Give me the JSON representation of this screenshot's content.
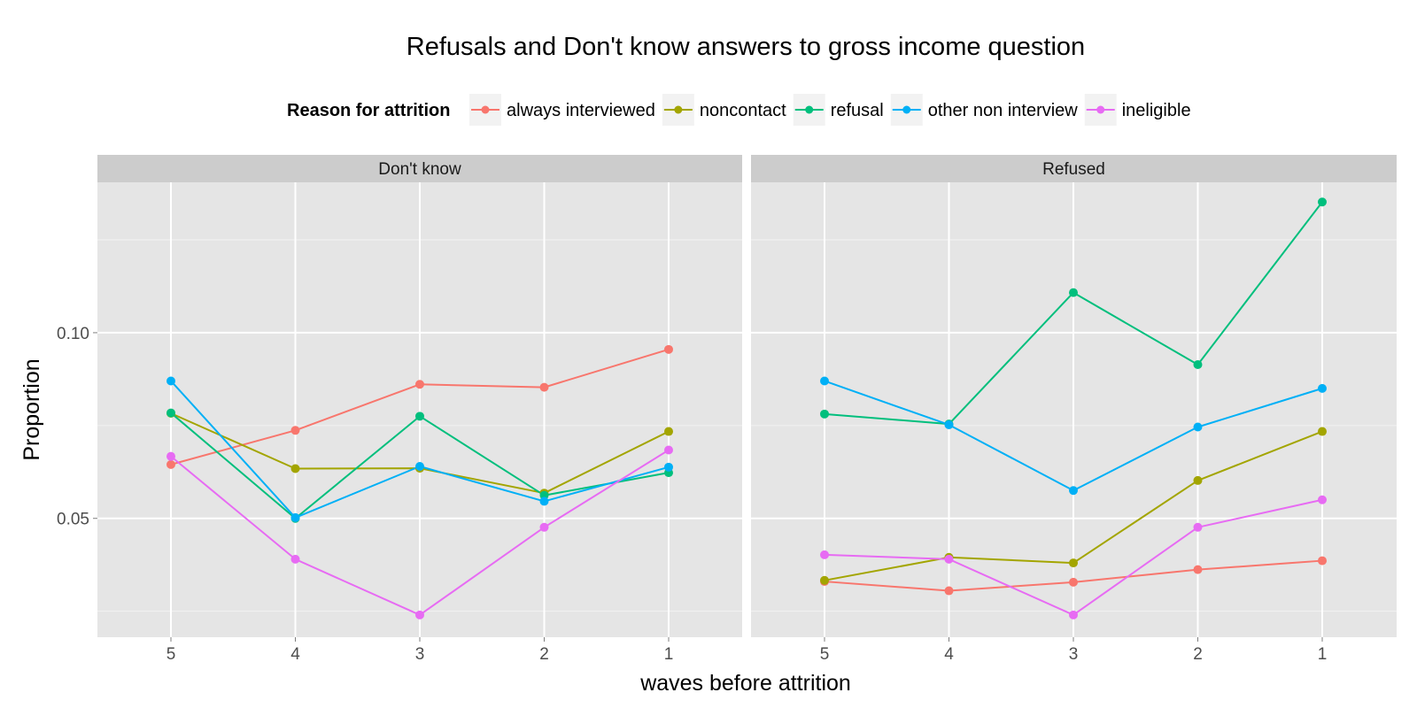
{
  "chart_data": {
    "type": "line",
    "title": "Refusals and Don't know answers to gross income question",
    "xlabel": "waves before attrition",
    "ylabel": "Proportion",
    "x": [
      "5",
      "4",
      "3",
      "2",
      "1"
    ],
    "ylim": [
      0.018,
      0.1405
    ],
    "y_ticks": [
      0.05,
      0.1
    ],
    "y_tick_labels": [
      "0.05",
      "0.10"
    ],
    "grid": true,
    "legend": {
      "title": "Reason for attrition",
      "position": "top"
    },
    "series_styles": [
      {
        "name": "always interviewed",
        "color": "#F8766D"
      },
      {
        "name": "noncontact",
        "color": "#A3A500"
      },
      {
        "name": "refusal",
        "color": "#00BF7D"
      },
      {
        "name": "other non interview",
        "color": "#00B0F6"
      },
      {
        "name": "ineligible",
        "color": "#E76BF3"
      }
    ],
    "panels": [
      {
        "label": "Don't know",
        "series": [
          {
            "name": "always interviewed",
            "values": [
              0.0645,
              0.0737,
              0.0861,
              0.0853,
              0.0955
            ]
          },
          {
            "name": "noncontact",
            "values": [
              0.0783,
              0.0634,
              0.0635,
              0.0568,
              0.0734
            ]
          },
          {
            "name": "refusal",
            "values": [
              0.0784,
              0.05,
              0.0775,
              0.0562,
              0.0623
            ]
          },
          {
            "name": "other non interview",
            "values": [
              0.087,
              0.0502,
              0.064,
              0.0546,
              0.0638
            ]
          },
          {
            "name": "ineligible",
            "values": [
              0.0667,
              0.039,
              0.024,
              0.0476,
              0.0684
            ]
          }
        ]
      },
      {
        "label": "Refused",
        "series": [
          {
            "name": "always interviewed",
            "values": [
              0.033,
              0.0305,
              0.0328,
              0.0362,
              0.0386
            ]
          },
          {
            "name": "noncontact",
            "values": [
              0.0333,
              0.0395,
              0.038,
              0.0602,
              0.0734
            ]
          },
          {
            "name": "refusal",
            "values": [
              0.0781,
              0.0754,
              0.1108,
              0.0914,
              0.1352
            ]
          },
          {
            "name": "other non interview",
            "values": [
              0.087,
              0.0752,
              0.0575,
              0.0746,
              0.085
            ]
          },
          {
            "name": "ineligible",
            "values": [
              0.0402,
              0.039,
              0.024,
              0.0476,
              0.055
            ]
          }
        ]
      }
    ]
  }
}
